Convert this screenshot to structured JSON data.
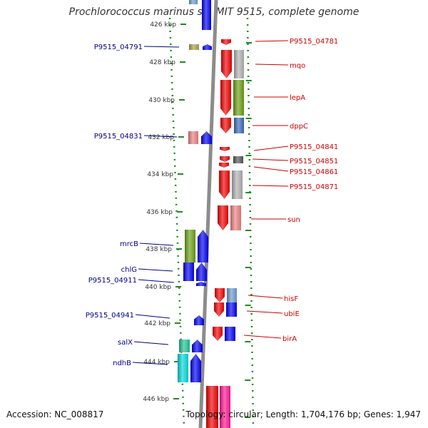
{
  "title": "Prochlorococcus marinus str. MIT 9515, complete genome",
  "accession": "Accession: NC_008817",
  "topology": "Topology: circular; Length: 1,704,176 bp; Genes: 1,947",
  "ticks": [
    "426 kbp",
    "428 kbp",
    "430 kbp",
    "432 kbp",
    "434 kbp",
    "436 kbp",
    "438 kbp",
    "440 kbp",
    "442 kbp",
    "444 kbp",
    "446 kbp"
  ],
  "left_labels": [
    "P9515_04791",
    "P9515_04831",
    "mrcB",
    "chlG",
    "P9515_04911",
    "P9515_04941",
    "salX",
    "ndhB"
  ],
  "right_labels": [
    "P9515_04781",
    "mqo",
    "lepA",
    "dppC",
    "P9515_04841",
    "P9515_04851",
    "P9515_04861",
    "P9515_04871",
    "sun",
    "hisF",
    "ubiE",
    "birA"
  ],
  "colors": {
    "label_left": "#00008b",
    "label_right": "#cc0000",
    "backbone": "#8c8c8c",
    "tick": "#1e8c1e"
  }
}
